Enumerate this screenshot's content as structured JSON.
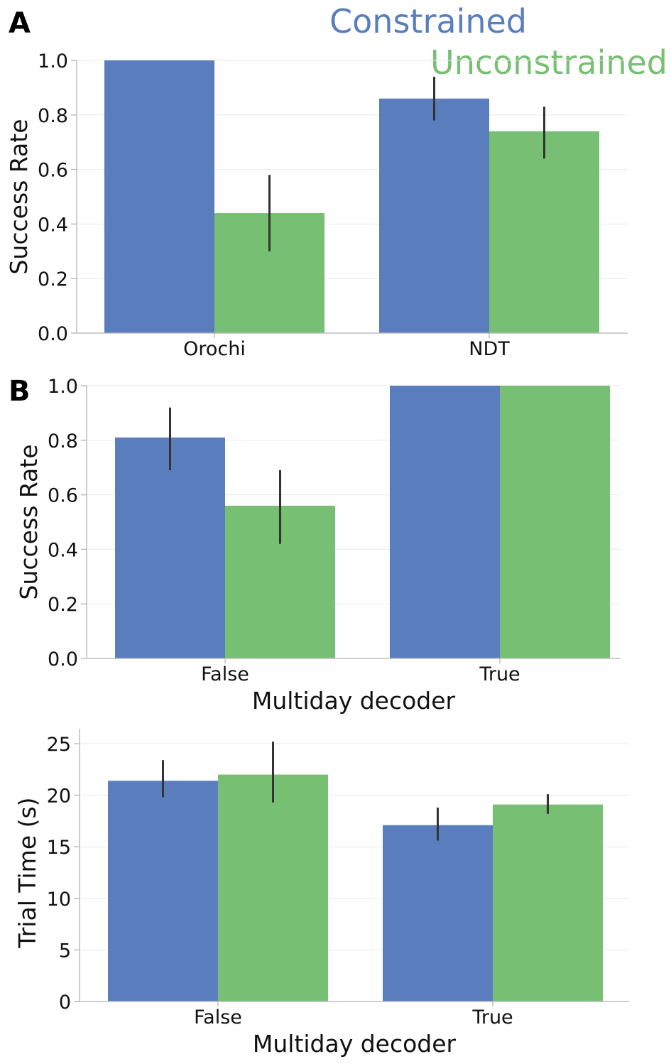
{
  "panel_labels": {
    "a": "A",
    "b": "B"
  },
  "legend": [
    {
      "name": "Constrained",
      "color": "#5a7dbd"
    },
    {
      "name": "Unconstrained",
      "color": "#77bf72"
    }
  ],
  "chart_data": [
    {
      "type": "bar",
      "panel": "A",
      "categories": [
        "Orochi",
        "NDT"
      ],
      "series": [
        {
          "name": "Constrained",
          "values": [
            1.0,
            0.86
          ],
          "err_low": [
            1.0,
            0.78
          ],
          "err_high": [
            1.0,
            0.94
          ]
        },
        {
          "name": "Unconstrained",
          "values": [
            0.44,
            0.74
          ],
          "err_low": [
            0.3,
            0.64
          ],
          "err_high": [
            0.58,
            0.83
          ]
        }
      ],
      "xlabel": "",
      "ylabel": "Success Rate",
      "ylim": [
        0,
        1.0
      ],
      "yticks": [
        "0.0",
        "0.2",
        "0.4",
        "0.6",
        "0.8",
        "1.0"
      ],
      "grid": true,
      "legend_position": "top-right"
    },
    {
      "type": "bar",
      "panel": "B",
      "categories": [
        "False",
        "True"
      ],
      "series": [
        {
          "name": "Constrained",
          "values": [
            0.81,
            1.0
          ],
          "err_low": [
            0.69,
            1.0
          ],
          "err_high": [
            0.92,
            1.0
          ]
        },
        {
          "name": "Unconstrained",
          "values": [
            0.56,
            1.0
          ],
          "err_low": [
            0.42,
            1.0
          ],
          "err_high": [
            0.69,
            1.0
          ]
        }
      ],
      "xlabel": "Multiday decoder",
      "ylabel": "Success Rate",
      "ylim": [
        0,
        1.0
      ],
      "yticks": [
        "0.0",
        "0.2",
        "0.4",
        "0.6",
        "0.8",
        "1.0"
      ],
      "grid": true
    },
    {
      "type": "bar",
      "panel": "",
      "categories": [
        "False",
        "True"
      ],
      "series": [
        {
          "name": "Constrained",
          "values": [
            21.4,
            17.1
          ],
          "err_low": [
            19.8,
            15.6
          ],
          "err_high": [
            23.4,
            18.8
          ]
        },
        {
          "name": "Unconstrained",
          "values": [
            22.0,
            19.1
          ],
          "err_low": [
            19.3,
            18.2
          ],
          "err_high": [
            25.2,
            20.1
          ]
        }
      ],
      "xlabel": "Multiday decoder",
      "ylabel": "Trial Time (s)",
      "ylim": [
        0,
        25
      ],
      "yticks": [
        "0",
        "5",
        "10",
        "15",
        "20",
        "25"
      ],
      "grid": true
    }
  ]
}
